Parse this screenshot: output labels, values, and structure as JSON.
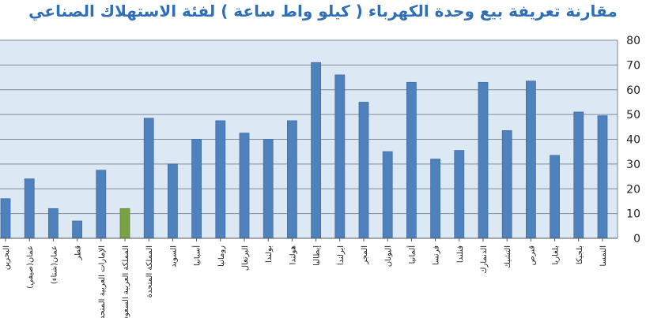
{
  "chart_data": {
    "type": "bar",
    "title": "مقارنة تعريفة بيع وحدة الكهرباء ( كيلو واط ساعة ) لفئة الاستهلاك الصناعي",
    "xlabel": "",
    "ylabel": "",
    "ylim": [
      0,
      80
    ],
    "yticks": [
      0,
      10,
      20,
      30,
      40,
      50,
      60,
      70,
      80
    ],
    "grid": true,
    "legend": "none",
    "categories": [
      "البحرين",
      "عمان(صيفي)",
      "عمان(شتاء)",
      "قطر",
      "الإمارات العربية المتحدة",
      "المملكة العربية السعودية",
      "المملكة المتحدة",
      "السويد",
      "أسبانيا",
      "رومانيا",
      "البرتغال",
      "بولندا",
      "هولندا",
      "إيطاليا",
      "ايرلندا",
      "المجر",
      "اليونان",
      "ألمانيا",
      "فرنسا",
      "فنلندا",
      "الدنمارك",
      "التشيك",
      "قبرص",
      "بلغاريا",
      "بلجيكا",
      "النمسا"
    ],
    "values": [
      16,
      24,
      12,
      7,
      27.5,
      12,
      48.5,
      30,
      40,
      47.5,
      42.5,
      40,
      47.5,
      71,
      66,
      55,
      35,
      63,
      32,
      35.5,
      63,
      43.5,
      63.5,
      33.5,
      51,
      49.5
    ],
    "highlight_index": 5,
    "colors": {
      "bar": "#4f81bd",
      "bar_stroke": "#3f6fa8",
      "highlight": "#77a244",
      "highlight_stroke": "#5e8536",
      "plot_bg": "#dde8f5",
      "grid": "#7f8a96",
      "title": "#2e6fb7",
      "text": "#222222"
    }
  }
}
